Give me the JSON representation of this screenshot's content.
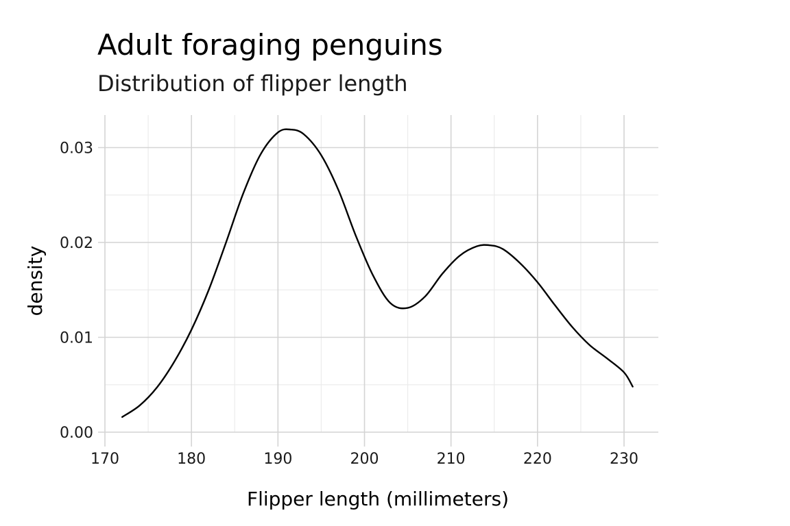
{
  "chart_data": {
    "type": "line",
    "title": "Adult foraging penguins",
    "subtitle": "Distribution of flipper length",
    "xlabel": "Flipper length (millimeters)",
    "ylabel": "density",
    "xlim": [
      170,
      234
    ],
    "ylim": [
      0,
      0.0335
    ],
    "x_ticks": [
      170,
      180,
      190,
      200,
      210,
      220,
      230
    ],
    "x_tick_labels": [
      "170",
      "180",
      "190",
      "200",
      "210",
      "220",
      "230"
    ],
    "y_ticks": [
      0,
      0.01,
      0.02,
      0.03
    ],
    "y_tick_labels": [
      "0.00",
      "0.01",
      "0.02",
      "0.03"
    ],
    "grid": true,
    "legend": "none",
    "series": [
      {
        "color": "#000000",
        "x": [
          172,
          174,
          176,
          178,
          180,
          182,
          184,
          186,
          188,
          190,
          191.5,
          193,
          195,
          197,
          199,
          201,
          203,
          205,
          207,
          209,
          211,
          213,
          214.5,
          216,
          218,
          220,
          222,
          224,
          226,
          228,
          230,
          231
        ],
        "y": [
          0.0016,
          0.0028,
          0.0047,
          0.0074,
          0.0108,
          0.015,
          0.02,
          0.0252,
          0.0293,
          0.0316,
          0.0319,
          0.0314,
          0.0292,
          0.0255,
          0.0207,
          0.0165,
          0.0136,
          0.0131,
          0.0143,
          0.0167,
          0.0186,
          0.0196,
          0.0197,
          0.0193,
          0.0178,
          0.0158,
          0.0134,
          0.0111,
          0.0092,
          0.0078,
          0.0063,
          0.0048
        ]
      }
    ]
  }
}
